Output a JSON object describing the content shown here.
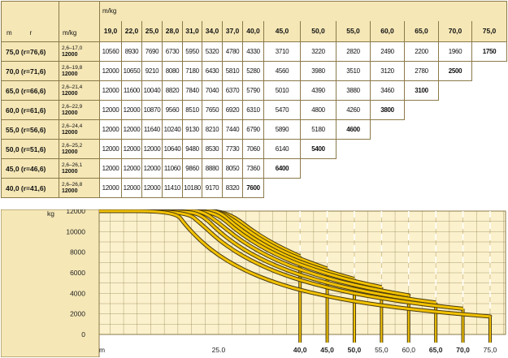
{
  "table": {
    "top_label": "m/kg",
    "corner_m": "m",
    "corner_r": "r",
    "range_header": "m/kg",
    "radii": [
      "19,0",
      "22,0",
      "25,0",
      "28,0",
      "31,0",
      "34,0",
      "37,0",
      "40,0",
      "45,0",
      "50,0",
      "55,0",
      "60,0",
      "65,0",
      "70,0",
      "75,0"
    ],
    "rows": [
      {
        "boom": "75,0  (r=76,6)",
        "range": "2,6–17,0",
        "max": "12000",
        "values": [
          "10560",
          "8930",
          "7690",
          "6730",
          "5950",
          "5320",
          "4780",
          "4330",
          "3710",
          "3220",
          "2820",
          "2490",
          "2200",
          "1960",
          "1750"
        ],
        "bold_last": true
      },
      {
        "boom": "70,0  (r=71,6)",
        "range": "2,6–19,8",
        "max": "12000",
        "values": [
          "12000",
          "10650",
          "9210",
          "8080",
          "7180",
          "6430",
          "5810",
          "5280",
          "4560",
          "3980",
          "3510",
          "3120",
          "2780",
          "2500"
        ],
        "bold_last": true
      },
      {
        "boom": "65,0  (r=66,6)",
        "range": "2,6–21,4",
        "max": "12000",
        "values": [
          "12000",
          "11600",
          "10040",
          "8820",
          "7840",
          "7040",
          "6370",
          "5790",
          "5010",
          "4390",
          "3880",
          "3460",
          "3100"
        ],
        "bold_last": true
      },
      {
        "boom": "60,0  (r=61,6)",
        "range": "2,6–22,9",
        "max": "12000",
        "values": [
          "12000",
          "12000",
          "10870",
          "9560",
          "8510",
          "7650",
          "6920",
          "6310",
          "5470",
          "4800",
          "4260",
          "3800"
        ],
        "bold_last": true
      },
      {
        "boom": "55,0  (r=56,6)",
        "range": "2,6–24,4",
        "max": "12000",
        "values": [
          "12000",
          "12000",
          "11640",
          "10240",
          "9130",
          "8210",
          "7440",
          "6790",
          "5890",
          "5180",
          "4600"
        ],
        "bold_last": true
      },
      {
        "boom": "50,0  (r=51,6)",
        "range": "2,6–25,2",
        "max": "12000",
        "values": [
          "12000",
          "12000",
          "12000",
          "10640",
          "9480",
          "8530",
          "7730",
          "7060",
          "6140",
          "5400"
        ],
        "bold_last": true
      },
      {
        "boom": "45,0  (r=46,6)",
        "range": "2,6–26,1",
        "max": "12000",
        "values": [
          "12000",
          "12000",
          "12000",
          "11060",
          "9860",
          "8880",
          "8050",
          "7360",
          "6400"
        ],
        "bold_last": true
      },
      {
        "boom": "40,0  (r=41,6)",
        "range": "2,6–26,8",
        "max": "12000",
        "values": [
          "12000",
          "12000",
          "12000",
          "11410",
          "10180",
          "9170",
          "8320",
          "7600"
        ],
        "bold_last": true
      }
    ]
  },
  "chart_data": {
    "type": "line",
    "ylabel": "kg",
    "xlabel": "m",
    "yticks": [
      "12000",
      "10000",
      "8000",
      "6000",
      "4000",
      "2000",
      "0"
    ],
    "xticks": [
      {
        "label": "25.0",
        "bold": false
      },
      {
        "label": "40,0",
        "bold": true
      },
      {
        "label": "45,0",
        "bold": true
      },
      {
        "label": "50,0",
        "bold": true
      },
      {
        "label": "55,0",
        "bold": false
      },
      {
        "label": "60,0",
        "bold": false
      },
      {
        "label": "65,0",
        "bold": true
      },
      {
        "label": "70,0",
        "bold": true
      },
      {
        "label": "75,0",
        "bold": false
      }
    ],
    "ylim": [
      0,
      12000
    ],
    "grid": true,
    "colors": {
      "background": "#fbf1cc",
      "curve": "#f2c200",
      "curve_edge": "#4a3a10",
      "grid": "#8b7a4a"
    },
    "series": [
      {
        "x": [
          3,
          19,
          22,
          25,
          28,
          31,
          34,
          37,
          40
        ],
        "y": [
          12000,
          12000,
          12000,
          12000,
          11410,
          10180,
          9170,
          8320,
          7600
        ]
      },
      {
        "x": [
          3,
          19,
          22,
          25,
          28,
          31,
          34,
          37,
          40,
          45
        ],
        "y": [
          12000,
          12000,
          12000,
          12000,
          11060,
          9860,
          8880,
          8050,
          7360,
          6400
        ]
      },
      {
        "x": [
          3,
          19,
          22,
          25,
          28,
          31,
          34,
          37,
          40,
          45,
          50
        ],
        "y": [
          12000,
          12000,
          12000,
          12000,
          10640,
          9480,
          8530,
          7730,
          7060,
          6140,
          5400
        ]
      },
      {
        "x": [
          3,
          19,
          22,
          25,
          28,
          31,
          34,
          37,
          40,
          45,
          50,
          55
        ],
        "y": [
          12000,
          12000,
          12000,
          11640,
          10240,
          9130,
          8210,
          7440,
          6790,
          5890,
          5180,
          4600
        ]
      },
      {
        "x": [
          3,
          19,
          22,
          25,
          28,
          31,
          34,
          37,
          40,
          45,
          50,
          55,
          60
        ],
        "y": [
          12000,
          12000,
          12000,
          10870,
          9560,
          8510,
          7650,
          6920,
          6310,
          5470,
          4800,
          4260,
          3800
        ]
      },
      {
        "x": [
          3,
          19,
          22,
          25,
          28,
          31,
          34,
          37,
          40,
          45,
          50,
          55,
          60,
          65
        ],
        "y": [
          12000,
          12000,
          11600,
          10040,
          8820,
          7840,
          7040,
          6370,
          5790,
          5010,
          4390,
          3880,
          3460,
          3100
        ]
      },
      {
        "x": [
          3,
          19,
          22,
          25,
          28,
          31,
          34,
          37,
          40,
          45,
          50,
          55,
          60,
          65,
          70
        ],
        "y": [
          12000,
          12000,
          10650,
          9210,
          8080,
          7180,
          6430,
          5810,
          5280,
          4560,
          3980,
          3510,
          3120,
          2780,
          2500
        ]
      },
      {
        "x": [
          3,
          17,
          19,
          22,
          25,
          28,
          31,
          34,
          37,
          40,
          45,
          50,
          55,
          60,
          65,
          70,
          75
        ],
        "y": [
          12000,
          12000,
          10560,
          8930,
          7690,
          6730,
          5950,
          5320,
          4780,
          4330,
          3710,
          3220,
          2820,
          2490,
          2200,
          1960,
          1750
        ]
      }
    ]
  }
}
